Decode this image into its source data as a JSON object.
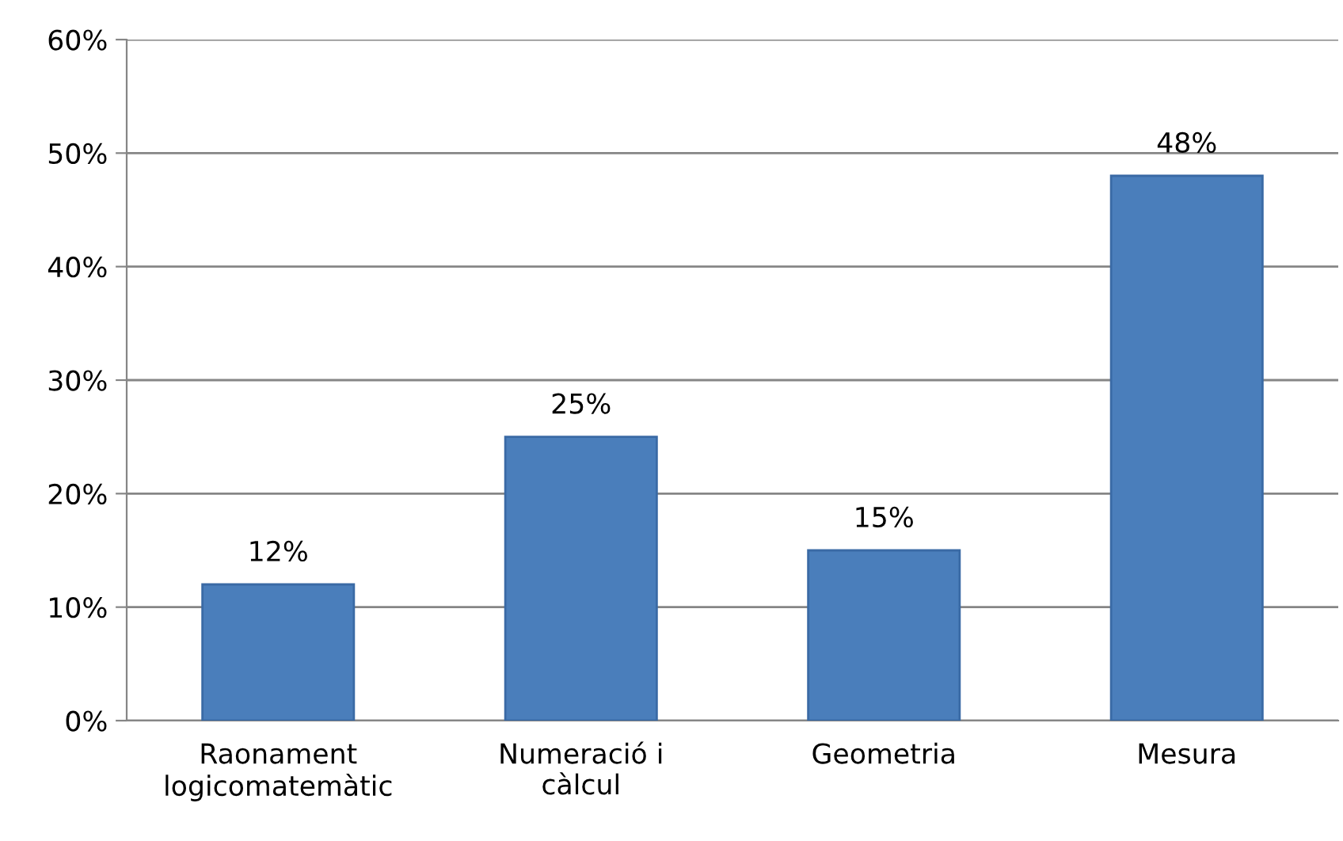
{
  "chart_data": {
    "type": "bar",
    "categories": [
      "Raonament\nlogicomatemàtic",
      "Numeració i\ncàlcul",
      "Geometria",
      "Mesura"
    ],
    "values": [
      12,
      25,
      15,
      48
    ],
    "value_labels": [
      "12%",
      "25%",
      "15%",
      "48%"
    ],
    "color": "#4a7ebb",
    "ylim": [
      0,
      60
    ],
    "yticks": [
      {
        "value": 0,
        "label": "0%"
      },
      {
        "value": 10,
        "label": "10%"
      },
      {
        "value": 20,
        "label": "20%"
      },
      {
        "value": 30,
        "label": "30%"
      },
      {
        "value": 40,
        "label": "40%"
      },
      {
        "value": 50,
        "label": "50%"
      },
      {
        "value": 60,
        "label": "60%"
      }
    ],
    "grid": "y"
  }
}
